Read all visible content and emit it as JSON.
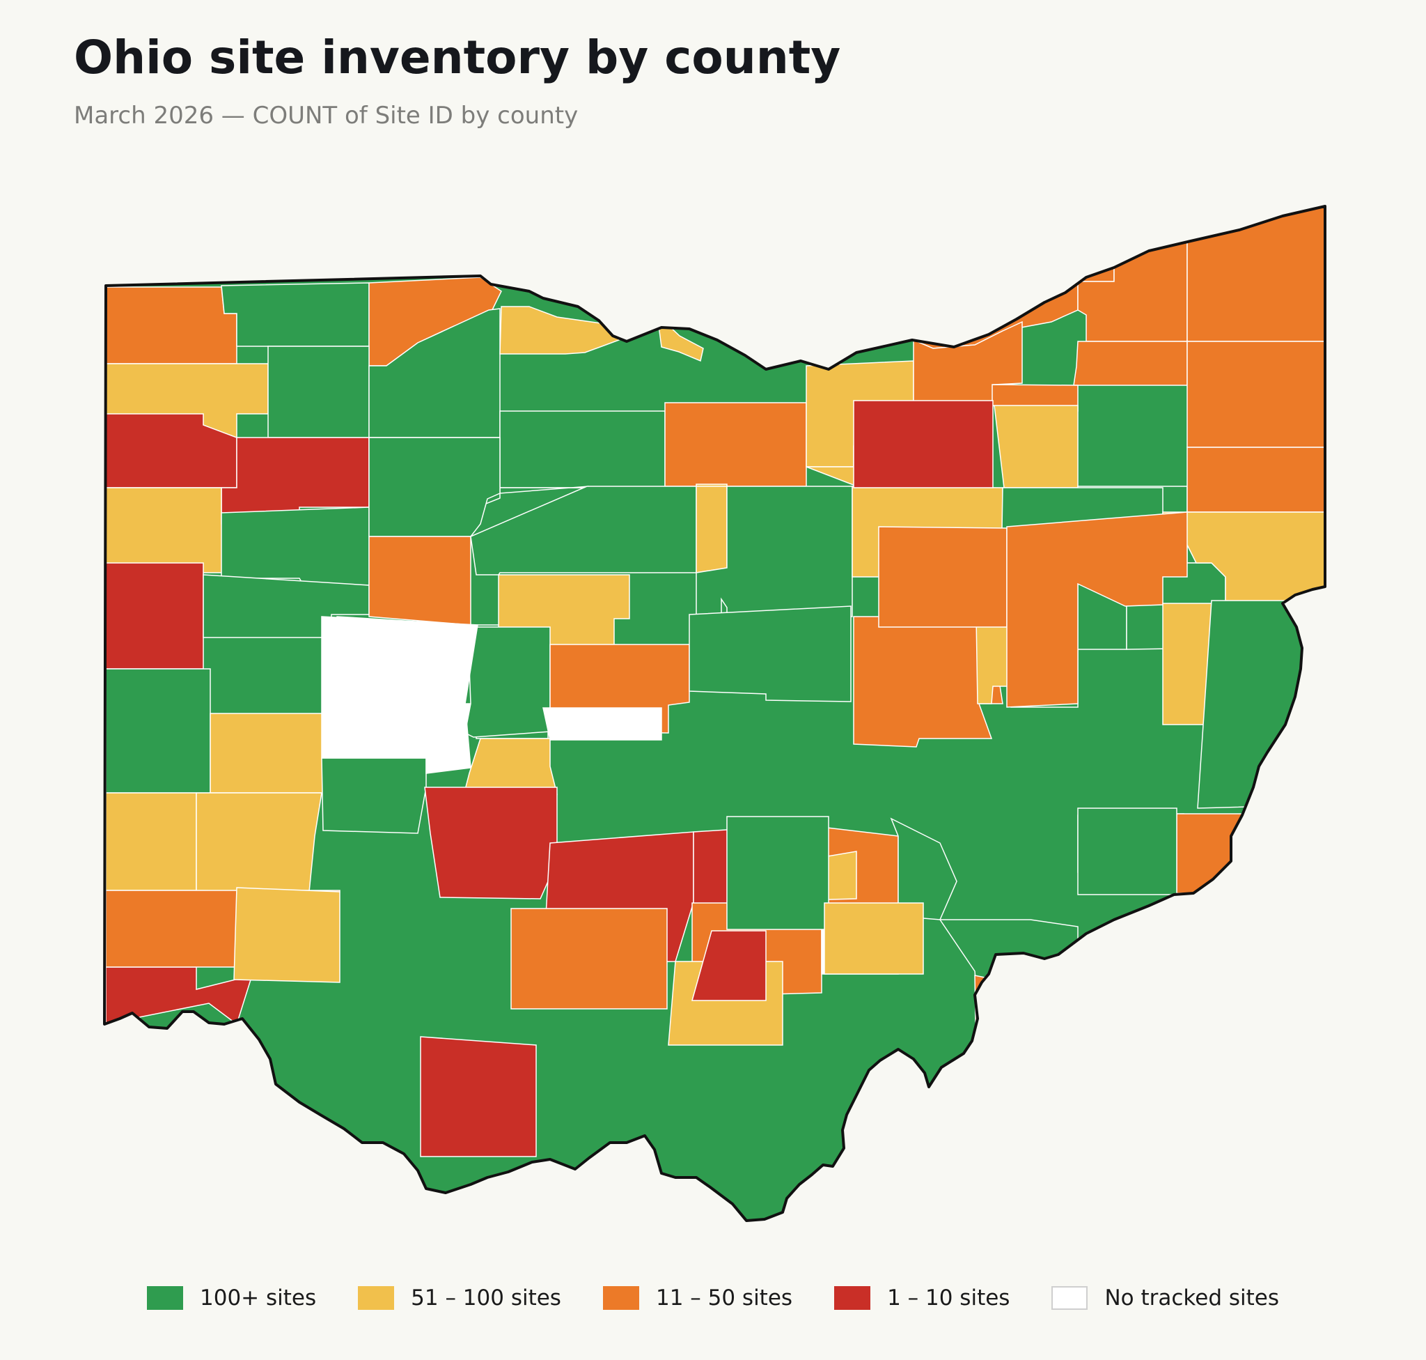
{
  "title": "Ohio site inventory by county",
  "subtitle": "March 2026 — COUNT of Site ID by county",
  "colors": {
    "t100": "#2f9c4f",
    "t51": "#f1c04c",
    "t11": "#ec7a28",
    "t1": "#c92f27",
    "t0": "#ffffff",
    "border": "#ffffff",
    "outline": "#111111",
    "background": "#f8f8f3"
  },
  "legend": [
    {
      "key": "t100",
      "label": "100+ sites"
    },
    {
      "key": "t51",
      "label": "51 – 100 sites"
    },
    {
      "key": "t11",
      "label": "11 – 50 sites"
    },
    {
      "key": "t1",
      "label": "1 – 10 sites"
    },
    {
      "key": "t0",
      "label": "No tracked sites"
    }
  ],
  "chart_data": {
    "type": "choropleth",
    "region": "Ohio",
    "measure": "COUNT of Site ID",
    "classes": [
      "100+ sites",
      "51 – 100 sites",
      "11 – 50 sites",
      "1 – 10 sites",
      "No tracked sites"
    ],
    "counties": [
      {
        "id": "c1",
        "tier": "t11"
      },
      {
        "id": "c2",
        "tier": "t100"
      },
      {
        "id": "c3",
        "tier": "t11"
      },
      {
        "id": "c4",
        "tier": "t51"
      },
      {
        "id": "c5",
        "tier": "t100"
      },
      {
        "id": "c6",
        "tier": "t100"
      },
      {
        "id": "c7",
        "tier": "t51"
      },
      {
        "id": "c8",
        "tier": "t51"
      },
      {
        "id": "c9",
        "tier": "t11"
      },
      {
        "id": "c10",
        "tier": "t11"
      },
      {
        "id": "c11",
        "tier": "t11"
      },
      {
        "id": "c12",
        "tier": "t11"
      },
      {
        "id": "c13",
        "tier": "t11"
      },
      {
        "id": "c14",
        "tier": "t1"
      },
      {
        "id": "c15",
        "tier": "t1"
      },
      {
        "id": "c16",
        "tier": "t100"
      },
      {
        "id": "c17",
        "tier": "t100"
      },
      {
        "id": "c18",
        "tier": "t11"
      },
      {
        "id": "c19",
        "tier": "t51"
      },
      {
        "id": "c20",
        "tier": "t11"
      },
      {
        "id": "c21",
        "tier": "t11"
      },
      {
        "id": "c22",
        "tier": "t51"
      },
      {
        "id": "c23",
        "tier": "t100"
      },
      {
        "id": "c24",
        "tier": "t100"
      },
      {
        "id": "c25",
        "tier": "t11"
      },
      {
        "id": "c26",
        "tier": "t100"
      },
      {
        "id": "c27",
        "tier": "t51"
      },
      {
        "id": "c28",
        "tier": "t51"
      },
      {
        "id": "c29",
        "tier": "t100"
      },
      {
        "id": "c30",
        "tier": "t100"
      },
      {
        "id": "c31",
        "tier": "t51"
      },
      {
        "id": "c32",
        "tier": "t1"
      },
      {
        "id": "c33",
        "tier": "t100"
      },
      {
        "id": "c34",
        "tier": "t0"
      },
      {
        "id": "c35",
        "tier": "t100"
      },
      {
        "id": "c36",
        "tier": "t11"
      },
      {
        "id": "c37",
        "tier": "t51"
      },
      {
        "id": "c38",
        "tier": "t100"
      },
      {
        "id": "c39",
        "tier": "t51"
      },
      {
        "id": "c40",
        "tier": "t100"
      },
      {
        "id": "c41",
        "tier": "t51"
      },
      {
        "id": "c42",
        "tier": "t100"
      },
      {
        "id": "c43",
        "tier": "t100"
      },
      {
        "id": "c44",
        "tier": "t100"
      },
      {
        "id": "c45",
        "tier": "t100"
      },
      {
        "id": "c46",
        "tier": "t51"
      },
      {
        "id": "c47",
        "tier": "t100"
      },
      {
        "id": "c48",
        "tier": "t51"
      },
      {
        "id": "c49",
        "tier": "t51"
      },
      {
        "id": "c50",
        "tier": "t51"
      },
      {
        "id": "c51",
        "tier": "t51"
      },
      {
        "id": "c52",
        "tier": "t100"
      },
      {
        "id": "c53",
        "tier": "t100"
      },
      {
        "id": "c54",
        "tier": "t51"
      },
      {
        "id": "c55",
        "tier": "t11"
      },
      {
        "id": "c56",
        "tier": "t100"
      },
      {
        "id": "c57",
        "tier": "t11"
      },
      {
        "id": "c58",
        "tier": "t51"
      },
      {
        "id": "c59",
        "tier": "t11"
      },
      {
        "id": "c60",
        "tier": "t11"
      },
      {
        "id": "c61",
        "tier": "t1"
      },
      {
        "id": "c62",
        "tier": "t0"
      },
      {
        "id": "c63",
        "tier": "t0"
      },
      {
        "id": "c64",
        "tier": "t1"
      },
      {
        "id": "c65",
        "tier": "t11"
      },
      {
        "id": "c66",
        "tier": "t11"
      },
      {
        "id": "c67",
        "tier": "t51"
      },
      {
        "id": "c68",
        "tier": "t1"
      },
      {
        "id": "c69",
        "tier": "t1"
      },
      {
        "id": "c70",
        "tier": "t1"
      },
      {
        "id": "c71",
        "tier": "t11"
      },
      {
        "id": "c72",
        "tier": "t51"
      },
      {
        "id": "c73",
        "tier": "t11"
      },
      {
        "id": "c74",
        "tier": "t51"
      },
      {
        "id": "c75",
        "tier": "t100"
      },
      {
        "id": "c76",
        "tier": "t0"
      },
      {
        "id": "c77",
        "tier": "t100"
      },
      {
        "id": "c78",
        "tier": "t11"
      },
      {
        "id": "c79",
        "tier": "t51"
      },
      {
        "id": "c80",
        "tier": "t51"
      },
      {
        "id": "c81",
        "tier": "t100"
      },
      {
        "id": "c82",
        "tier": "t11"
      },
      {
        "id": "c83",
        "tier": "t100"
      },
      {
        "id": "c84",
        "tier": "t1"
      },
      {
        "id": "c85",
        "tier": "t100"
      },
      {
        "id": "c86",
        "tier": "t11"
      },
      {
        "id": "c87",
        "tier": "t51"
      },
      {
        "id": "c88",
        "tier": "t1"
      }
    ]
  }
}
